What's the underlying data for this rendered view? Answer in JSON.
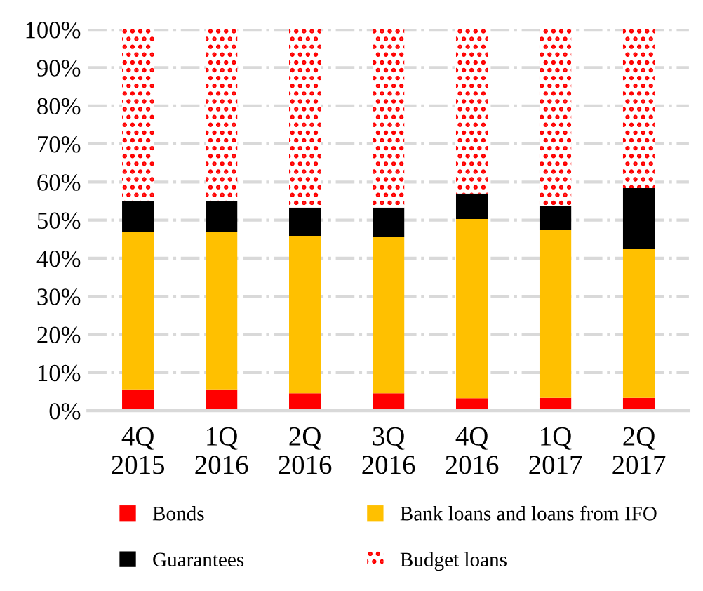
{
  "chart_data": {
    "type": "bar",
    "stacked": true,
    "categories": [
      "4Q\n2015",
      "1Q\n2016",
      "2Q\n2016",
      "3Q\n2016",
      "4Q\n2016",
      "1Q\n2017",
      "2Q\n2017"
    ],
    "series": [
      {
        "name": "Bonds",
        "color": "#ff0000",
        "values": [
          5.6,
          5.6,
          4.6,
          4.6,
          3.3,
          3.4,
          3.4
        ]
      },
      {
        "name": "Bank loans and loans from IFO",
        "color": "#ffc000",
        "values": [
          41.2,
          41.2,
          41.3,
          40.9,
          47.0,
          44.1,
          39.0
        ]
      },
      {
        "name": "Guarantees",
        "color": "#000000",
        "values": [
          8.1,
          8.1,
          7.4,
          7.8,
          6.7,
          6.1,
          16.0
        ]
      },
      {
        "name": "Budget loans",
        "color": "#ff0000",
        "values": [
          45.1,
          45.1,
          46.7,
          46.7,
          43.0,
          46.4,
          41.6
        ]
      }
    ],
    "ylim": [
      0,
      100
    ],
    "yticks": [
      {
        "value": 0,
        "label": "0%"
      },
      {
        "value": 10,
        "label": "10%"
      },
      {
        "value": 20,
        "label": "20%"
      },
      {
        "value": 30,
        "label": "30%"
      },
      {
        "value": 40,
        "label": "40%"
      },
      {
        "value": 50,
        "label": "50%"
      },
      {
        "value": 60,
        "label": "60%"
      },
      {
        "value": 70,
        "label": "70%"
      },
      {
        "value": 80,
        "label": "80%"
      },
      {
        "value": 90,
        "label": "90%"
      },
      {
        "value": 100,
        "label": "100%"
      }
    ],
    "grid": "y",
    "legend": "bottom"
  }
}
